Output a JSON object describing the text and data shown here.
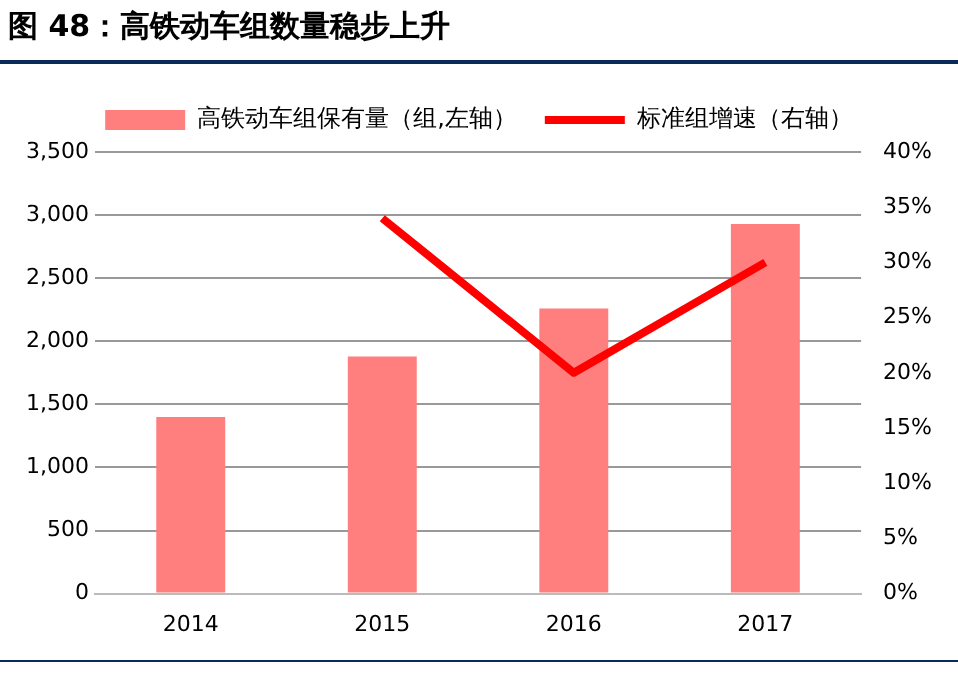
{
  "chart_data": {
    "type": "bar",
    "title": "图 48：高铁动车组数量稳步上升",
    "categories": [
      "2014",
      "2015",
      "2016",
      "2017"
    ],
    "series": [
      {
        "name": "高铁动车组保有量（组,左轴）",
        "color": "#ff7f7f",
        "values": [
          1400,
          1880,
          2260,
          2930
        ]
      },
      {
        "name": "标准组增速（右轴）",
        "type": "line",
        "axis": "y2",
        "color": "#ff0000",
        "values": [
          null,
          34,
          20,
          30
        ]
      }
    ],
    "ylim": [
      0,
      3500
    ],
    "yticks": [
      {
        "value": 0,
        "label": "0"
      },
      {
        "value": 500,
        "label": "500"
      },
      {
        "value": 1000,
        "label": "1,000"
      },
      {
        "value": 1500,
        "label": "1,500"
      },
      {
        "value": 2000,
        "label": "2,000"
      },
      {
        "value": 2500,
        "label": "2,500"
      },
      {
        "value": 3000,
        "label": "3,000"
      },
      {
        "value": 3500,
        "label": "3,500"
      }
    ],
    "y2lim": [
      0,
      40
    ],
    "y2ticks": [
      {
        "value": 0,
        "label": "0%"
      },
      {
        "value": 5,
        "label": "5%"
      },
      {
        "value": 10,
        "label": "10%"
      },
      {
        "value": 15,
        "label": "15%"
      },
      {
        "value": 20,
        "label": "20%"
      },
      {
        "value": 25,
        "label": "25%"
      },
      {
        "value": 30,
        "label": "30%"
      },
      {
        "value": 35,
        "label": "35%"
      },
      {
        "value": 40,
        "label": "40%"
      }
    ],
    "grid": "y",
    "legend": "top",
    "marker": "none",
    "line_style": "solid"
  }
}
